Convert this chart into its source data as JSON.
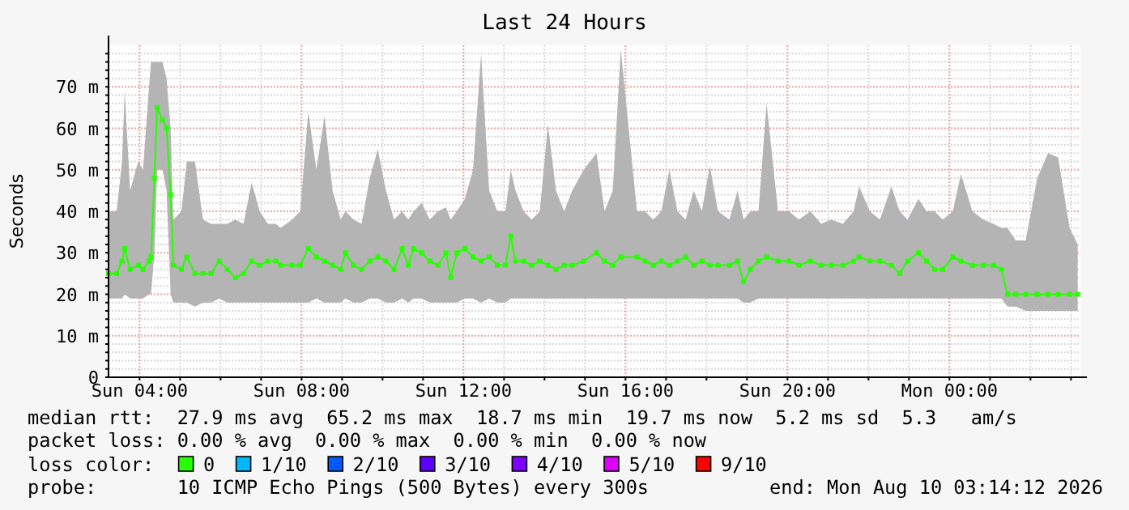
{
  "chart_data": {
    "type": "line",
    "title": "Last 24 Hours",
    "ylabel": "Seconds",
    "xlim": [
      "2026-08-09T03:14",
      "2026-08-10T03:14"
    ],
    "ylim": [
      0,
      80
    ],
    "xticks": [
      {
        "value": "2026-08-09T04:00",
        "label": "Sun 04:00"
      },
      {
        "value": "2026-08-09T05:00",
        "label": null
      },
      {
        "value": "2026-08-09T06:00",
        "label": null
      },
      {
        "value": "2026-08-09T07:00",
        "label": null
      },
      {
        "value": "2026-08-09T08:00",
        "label": "Sun 08:00"
      },
      {
        "value": "2026-08-09T09:00",
        "label": null
      },
      {
        "value": "2026-08-09T10:00",
        "label": null
      },
      {
        "value": "2026-08-09T11:00",
        "label": null
      },
      {
        "value": "2026-08-09T12:00",
        "label": "Sun 12:00"
      },
      {
        "value": "2026-08-09T13:00",
        "label": null
      },
      {
        "value": "2026-08-09T14:00",
        "label": null
      },
      {
        "value": "2026-08-09T15:00",
        "label": null
      },
      {
        "value": "2026-08-09T16:00",
        "label": "Sun 16:00"
      },
      {
        "value": "2026-08-09T17:00",
        "label": null
      },
      {
        "value": "2026-08-09T18:00",
        "label": null
      },
      {
        "value": "2026-08-09T19:00",
        "label": null
      },
      {
        "value": "2026-08-09T20:00",
        "label": "Sun 20:00"
      },
      {
        "value": "2026-08-09T21:00",
        "label": null
      },
      {
        "value": "2026-08-09T22:00",
        "label": null
      },
      {
        "value": "2026-08-09T23:00",
        "label": null
      },
      {
        "value": "2026-08-10T00:00",
        "label": "Mon 00:00"
      },
      {
        "value": "2026-08-10T01:00",
        "label": null
      },
      {
        "value": "2026-08-10T02:00",
        "label": null
      },
      {
        "value": "2026-08-10T03:00",
        "label": null
      }
    ],
    "yticks": [
      {
        "value": 0,
        "label": "0"
      },
      {
        "value": 2,
        "label": null
      },
      {
        "value": 4,
        "label": null
      },
      {
        "value": 6,
        "label": null
      },
      {
        "value": 8,
        "label": null
      },
      {
        "value": 10,
        "label": "10 m"
      },
      {
        "value": 12,
        "label": null
      },
      {
        "value": 14,
        "label": null
      },
      {
        "value": 16,
        "label": null
      },
      {
        "value": 18,
        "label": null
      },
      {
        "value": 20,
        "label": "20 m"
      },
      {
        "value": 22,
        "label": null
      },
      {
        "value": 24,
        "label": null
      },
      {
        "value": 26,
        "label": null
      },
      {
        "value": 28,
        "label": null
      },
      {
        "value": 30,
        "label": "30 m"
      },
      {
        "value": 32,
        "label": null
      },
      {
        "value": 34,
        "label": null
      },
      {
        "value": 36,
        "label": null
      },
      {
        "value": 38,
        "label": null
      },
      {
        "value": 40,
        "label": "40 m"
      },
      {
        "value": 42,
        "label": null
      },
      {
        "value": 44,
        "label": null
      },
      {
        "value": 46,
        "label": null
      },
      {
        "value": 48,
        "label": null
      },
      {
        "value": 50,
        "label": "50 m"
      },
      {
        "value": 52,
        "label": null
      },
      {
        "value": 54,
        "label": null
      },
      {
        "value": 56,
        "label": null
      },
      {
        "value": 58,
        "label": null
      },
      {
        "value": 60,
        "label": "60 m"
      },
      {
        "value": 62,
        "label": null
      },
      {
        "value": 64,
        "label": null
      },
      {
        "value": 66,
        "label": null
      },
      {
        "value": 68,
        "label": null
      },
      {
        "value": 70,
        "label": "70 m"
      },
      {
        "value": 72,
        "label": null
      },
      {
        "value": 74,
        "label": null
      },
      {
        "value": 76,
        "label": null
      },
      {
        "value": 78,
        "label": null
      }
    ],
    "grid": true,
    "marker": "square",
    "legend": "bottom",
    "legend_title": "loss color:",
    "x": [
      "2026-08-09T03:14",
      "2026-08-09T03:26",
      "2026-08-09T03:34",
      "2026-08-09T03:38",
      "2026-08-09T03:46",
      "2026-08-09T03:58",
      "2026-08-09T04:05",
      "2026-08-09T04:14",
      "2026-08-09T04:17",
      "2026-08-09T04:22",
      "2026-08-09T04:26",
      "2026-08-09T04:34",
      "2026-08-09T04:40",
      "2026-08-09T04:46",
      "2026-08-09T04:50",
      "2026-08-09T05:02",
      "2026-08-09T05:10",
      "2026-08-09T05:22",
      "2026-08-09T05:34",
      "2026-08-09T05:46",
      "2026-08-09T05:58",
      "2026-08-09T06:10",
      "2026-08-09T06:22",
      "2026-08-09T06:34",
      "2026-08-09T06:46",
      "2026-08-09T06:58",
      "2026-08-09T07:10",
      "2026-08-09T07:22",
      "2026-08-09T07:29",
      "2026-08-09T07:46",
      "2026-08-09T07:58",
      "2026-08-09T08:10",
      "2026-08-09T08:22",
      "2026-08-09T08:34",
      "2026-08-09T08:46",
      "2026-08-09T08:58",
      "2026-08-09T09:05",
      "2026-08-09T09:17",
      "2026-08-09T09:29",
      "2026-08-09T09:41",
      "2026-08-09T09:53",
      "2026-08-09T10:05",
      "2026-08-09T10:17",
      "2026-08-09T10:29",
      "2026-08-09T10:38",
      "2026-08-09T10:46",
      "2026-08-09T10:58",
      "2026-08-09T11:10",
      "2026-08-09T11:22",
      "2026-08-09T11:34",
      "2026-08-09T11:41",
      "2026-08-09T11:50",
      "2026-08-09T12:02",
      "2026-08-09T12:14",
      "2026-08-09T12:26",
      "2026-08-09T12:38",
      "2026-08-09T12:50",
      "2026-08-09T13:02",
      "2026-08-09T13:10",
      "2026-08-09T13:17",
      "2026-08-09T13:29",
      "2026-08-09T13:41",
      "2026-08-09T13:53",
      "2026-08-09T14:05",
      "2026-08-09T14:17",
      "2026-08-09T14:29",
      "2026-08-09T14:41",
      "2026-08-09T14:58",
      "2026-08-09T15:17",
      "2026-08-09T15:29",
      "2026-08-09T15:41",
      "2026-08-09T15:53",
      "2026-08-09T16:17",
      "2026-08-09T16:29",
      "2026-08-09T16:41",
      "2026-08-09T16:53",
      "2026-08-09T17:05",
      "2026-08-09T17:17",
      "2026-08-09T17:29",
      "2026-08-09T17:41",
      "2026-08-09T17:53",
      "2026-08-09T18:05",
      "2026-08-09T18:17",
      "2026-08-09T18:34",
      "2026-08-09T18:46",
      "2026-08-09T18:55",
      "2026-08-09T19:05",
      "2026-08-09T19:17",
      "2026-08-09T19:29",
      "2026-08-09T19:46",
      "2026-08-09T20:02",
      "2026-08-09T20:17",
      "2026-08-09T20:34",
      "2026-08-09T20:50",
      "2026-08-09T21:05",
      "2026-08-09T21:22",
      "2026-08-09T21:38",
      "2026-08-09T21:46",
      "2026-08-09T22:02",
      "2026-08-09T22:17",
      "2026-08-09T22:34",
      "2026-08-09T22:46",
      "2026-08-09T22:58",
      "2026-08-09T23:14",
      "2026-08-09T23:26",
      "2026-08-09T23:38",
      "2026-08-09T23:50",
      "2026-08-10T00:05",
      "2026-08-10T00:17",
      "2026-08-10T00:34",
      "2026-08-10T00:50",
      "2026-08-10T01:05",
      "2026-08-10T01:17",
      "2026-08-10T01:26",
      "2026-08-10T01:38",
      "2026-08-10T01:53",
      "2026-08-10T02:10",
      "2026-08-10T02:26",
      "2026-08-10T02:41",
      "2026-08-10T02:58",
      "2026-08-10T03:10"
    ],
    "series": [
      {
        "name": "0",
        "color": "#26ff00",
        "values": [
          25,
          25,
          28,
          31,
          26,
          27,
          26,
          28,
          29,
          48,
          65,
          62,
          60,
          44,
          27,
          26,
          29,
          25,
          25,
          25,
          28,
          26,
          24,
          25,
          28,
          27,
          28,
          28,
          27,
          27,
          27,
          31,
          29,
          28,
          27,
          26,
          30,
          27,
          26,
          28,
          29,
          28,
          26,
          31,
          27,
          31,
          30,
          28,
          27,
          30,
          24,
          30,
          31,
          29,
          28,
          29,
          27,
          27,
          34,
          28,
          28,
          27,
          28,
          27,
          26,
          27,
          27,
          28,
          30,
          28,
          27,
          29,
          29,
          28,
          27,
          28,
          27,
          28,
          29,
          27,
          28,
          27,
          27,
          27,
          28,
          23,
          26,
          28,
          29,
          28,
          28,
          27,
          28,
          27,
          27,
          27,
          28,
          29,
          28,
          28,
          27,
          25,
          28,
          30,
          28,
          26,
          26,
          29,
          28,
          27,
          27,
          27,
          26,
          20,
          20,
          20,
          20,
          20,
          20,
          20,
          20
        ],
        "lower": [
          19,
          19,
          19,
          20,
          19,
          19,
          19,
          20,
          20,
          30,
          50,
          50,
          45,
          20,
          18,
          18,
          18,
          17,
          18,
          18,
          19,
          18,
          18,
          18,
          18,
          18,
          18,
          18,
          18,
          18,
          18,
          18,
          19,
          18,
          18,
          18,
          19,
          18,
          18,
          19,
          19,
          18,
          18,
          19,
          18,
          19,
          19,
          18,
          18,
          18,
          18,
          18,
          19,
          19,
          18,
          19,
          18,
          18,
          19,
          19,
          19,
          19,
          19,
          19,
          19,
          19,
          19,
          19,
          19,
          19,
          19,
          19,
          19,
          19,
          19,
          19,
          19,
          19,
          19,
          19,
          19,
          19,
          19,
          19,
          19,
          18,
          18,
          19,
          19,
          19,
          19,
          19,
          19,
          19,
          19,
          19,
          19,
          19,
          19,
          19,
          19,
          19,
          19,
          19,
          19,
          19,
          19,
          19,
          19,
          19,
          19,
          19,
          19,
          17,
          17,
          16,
          16,
          16,
          16,
          16,
          16
        ],
        "upper": [
          40,
          40,
          52,
          69,
          45,
          52,
          50,
          70,
          76,
          76,
          76,
          76,
          72,
          60,
          38,
          40,
          52,
          52,
          38,
          37,
          37,
          37,
          38,
          37,
          47,
          40,
          37,
          37,
          36,
          38,
          40,
          64,
          50,
          63,
          45,
          38,
          40,
          38,
          37,
          48,
          55,
          45,
          38,
          40,
          38,
          40,
          42,
          38,
          40,
          41,
          38,
          40,
          43,
          50,
          78,
          45,
          40,
          40,
          50,
          45,
          40,
          38,
          40,
          61,
          45,
          40,
          45,
          50,
          54,
          40,
          45,
          79,
          40,
          40,
          38,
          40,
          50,
          40,
          38,
          45,
          40,
          51,
          40,
          38,
          45,
          38,
          40,
          40,
          66,
          40,
          40,
          38,
          40,
          37,
          38,
          37,
          40,
          46,
          40,
          38,
          46,
          40,
          38,
          43,
          40,
          40,
          38,
          40,
          49,
          40,
          38,
          37,
          36,
          36,
          33,
          33,
          48,
          54,
          53,
          36,
          32
        ]
      },
      {
        "name": "1/10",
        "color": "#00b8ff",
        "values": [
          null,
          null,
          null,
          null,
          null,
          null,
          null,
          null,
          null,
          null,
          null,
          null,
          null,
          null,
          null,
          null,
          null,
          null,
          null,
          null,
          null,
          null,
          null,
          null,
          null,
          null,
          null,
          null,
          null,
          null,
          null,
          null,
          null,
          null,
          null,
          null,
          null,
          null,
          null,
          null,
          null,
          null,
          null,
          null,
          null,
          null,
          null,
          null,
          null,
          null,
          null,
          null,
          null,
          null,
          null,
          null,
          null,
          null,
          null,
          null,
          null,
          null,
          null,
          null,
          null,
          null,
          null,
          null,
          null,
          null,
          null,
          null,
          null,
          null,
          null,
          null,
          null,
          null,
          null,
          null,
          null,
          null,
          null,
          null,
          null,
          null,
          null,
          null,
          null,
          null,
          null,
          null,
          null,
          null,
          null,
          null,
          null,
          null,
          null,
          null,
          null,
          null,
          null,
          null,
          null,
          null,
          null,
          null,
          null,
          null,
          null,
          null,
          null,
          null,
          null,
          null,
          null,
          null,
          null,
          null,
          null
        ]
      },
      {
        "name": "2/10",
        "color": "#0059ff",
        "values": [
          null,
          null,
          null,
          null,
          null,
          null,
          null,
          null,
          null,
          null,
          null,
          null,
          null,
          null,
          null,
          null,
          null,
          null,
          null,
          null,
          null,
          null,
          null,
          null,
          null,
          null,
          null,
          null,
          null,
          null,
          null,
          null,
          null,
          null,
          null,
          null,
          null,
          null,
          null,
          null,
          null,
          null,
          null,
          null,
          null,
          null,
          null,
          null,
          null,
          null,
          null,
          null,
          null,
          null,
          null,
          null,
          null,
          null,
          null,
          null,
          null,
          null,
          null,
          null,
          null,
          null,
          null,
          null,
          null,
          null,
          null,
          null,
          null,
          null,
          null,
          null,
          null,
          null,
          null,
          null,
          null,
          null,
          null,
          null,
          null,
          null,
          null,
          null,
          null,
          null,
          null,
          null,
          null,
          null,
          null,
          null,
          null,
          null,
          null,
          null,
          null,
          null,
          null,
          null,
          null,
          null,
          null,
          null,
          null,
          null,
          null,
          null,
          null,
          null,
          null,
          null,
          null,
          null,
          null,
          null,
          null
        ]
      },
      {
        "name": "3/10",
        "color": "#5e00ff",
        "values": [
          null,
          null,
          null,
          null,
          null,
          null,
          null,
          null,
          null,
          null,
          null,
          null,
          null,
          null,
          null,
          null,
          null,
          null,
          null,
          null,
          null,
          null,
          null,
          null,
          null,
          null,
          null,
          null,
          null,
          null,
          null,
          null,
          null,
          null,
          null,
          null,
          null,
          null,
          null,
          null,
          null,
          null,
          null,
          null,
          null,
          null,
          null,
          null,
          null,
          null,
          null,
          null,
          null,
          null,
          null,
          null,
          null,
          null,
          null,
          null,
          null,
          null,
          null,
          null,
          null,
          null,
          null,
          null,
          null,
          null,
          null,
          null,
          null,
          null,
          null,
          null,
          null,
          null,
          null,
          null,
          null,
          null,
          null,
          null,
          null,
          null,
          null,
          null,
          null,
          null,
          null,
          null,
          null,
          null,
          null,
          null,
          null,
          null,
          null,
          null,
          null,
          null,
          null,
          null,
          null,
          null,
          null,
          null,
          null,
          null,
          null,
          null,
          null,
          null,
          null,
          null,
          null,
          null,
          null,
          null,
          null
        ]
      },
      {
        "name": "4/10",
        "color": "#7e00ff",
        "values": [
          null,
          null,
          null,
          null,
          null,
          null,
          null,
          null,
          null,
          null,
          null,
          null,
          null,
          null,
          null,
          null,
          null,
          null,
          null,
          null,
          null,
          null,
          null,
          null,
          null,
          null,
          null,
          null,
          null,
          null,
          null,
          null,
          null,
          null,
          null,
          null,
          null,
          null,
          null,
          null,
          null,
          null,
          null,
          null,
          null,
          null,
          null,
          null,
          null,
          null,
          null,
          null,
          null,
          null,
          null,
          null,
          null,
          null,
          null,
          null,
          null,
          null,
          null,
          null,
          null,
          null,
          null,
          null,
          null,
          null,
          null,
          null,
          null,
          null,
          null,
          null,
          null,
          null,
          null,
          null,
          null,
          null,
          null,
          null,
          null,
          null,
          null,
          null,
          null,
          null,
          null,
          null,
          null,
          null,
          null,
          null,
          null,
          null,
          null,
          null,
          null,
          null,
          null,
          null,
          null,
          null,
          null,
          null,
          null,
          null,
          null,
          null,
          null,
          null,
          null,
          null,
          null,
          null,
          null,
          null,
          null
        ]
      },
      {
        "name": "5/10",
        "color": "#dd00ff",
        "values": [
          null,
          null,
          null,
          null,
          null,
          null,
          null,
          null,
          null,
          null,
          null,
          null,
          null,
          null,
          null,
          null,
          null,
          null,
          null,
          null,
          null,
          null,
          null,
          null,
          null,
          null,
          null,
          null,
          null,
          null,
          null,
          null,
          null,
          null,
          null,
          null,
          null,
          null,
          null,
          null,
          null,
          null,
          null,
          null,
          null,
          null,
          null,
          null,
          null,
          null,
          null,
          null,
          null,
          null,
          null,
          null,
          null,
          null,
          null,
          null,
          null,
          null,
          null,
          null,
          null,
          null,
          null,
          null,
          null,
          null,
          null,
          null,
          null,
          null,
          null,
          null,
          null,
          null,
          null,
          null,
          null,
          null,
          null,
          null,
          null,
          null,
          null,
          null,
          null,
          null,
          null,
          null,
          null,
          null,
          null,
          null,
          null,
          null,
          null,
          null,
          null,
          null,
          null,
          null,
          null,
          null,
          null,
          null,
          null,
          null,
          null,
          null,
          null,
          null,
          null,
          null,
          null,
          null,
          null,
          null,
          null
        ]
      },
      {
        "name": "9/10",
        "color": "#ff0000",
        "values": [
          null,
          null,
          null,
          null,
          null,
          null,
          null,
          null,
          null,
          null,
          null,
          null,
          null,
          null,
          null,
          null,
          null,
          null,
          null,
          null,
          null,
          null,
          null,
          null,
          null,
          null,
          null,
          null,
          null,
          null,
          null,
          null,
          null,
          null,
          null,
          null,
          null,
          null,
          null,
          null,
          null,
          null,
          null,
          null,
          null,
          null,
          null,
          null,
          null,
          null,
          null,
          null,
          null,
          null,
          null,
          null,
          null,
          null,
          null,
          null,
          null,
          null,
          null,
          null,
          null,
          null,
          null,
          null,
          null,
          null,
          null,
          null,
          null,
          null,
          null,
          null,
          null,
          null,
          null,
          null,
          null,
          null,
          null,
          null,
          null,
          null,
          null,
          null,
          null,
          null,
          null,
          null,
          null,
          null,
          null,
          null,
          null,
          null,
          null,
          null,
          null,
          null,
          null,
          null,
          null,
          null,
          null,
          null,
          null,
          null,
          null,
          null,
          null,
          null,
          null,
          null,
          null,
          null,
          null,
          null,
          null
        ]
      }
    ],
    "annotations": [
      "median rtt:  27.9 ms avg  65.2 ms max  18.7 ms min  19.7 ms now  5.2 ms sd  5.3   am/s",
      "packet loss: 0.00 % avg  0.00 % max  0.00 % min  0.00 % now",
      "probe:       10 ICMP Echo Pings (500 Bytes) every 300s",
      "end: Mon Aug 10 03:14:12 2026"
    ]
  }
}
